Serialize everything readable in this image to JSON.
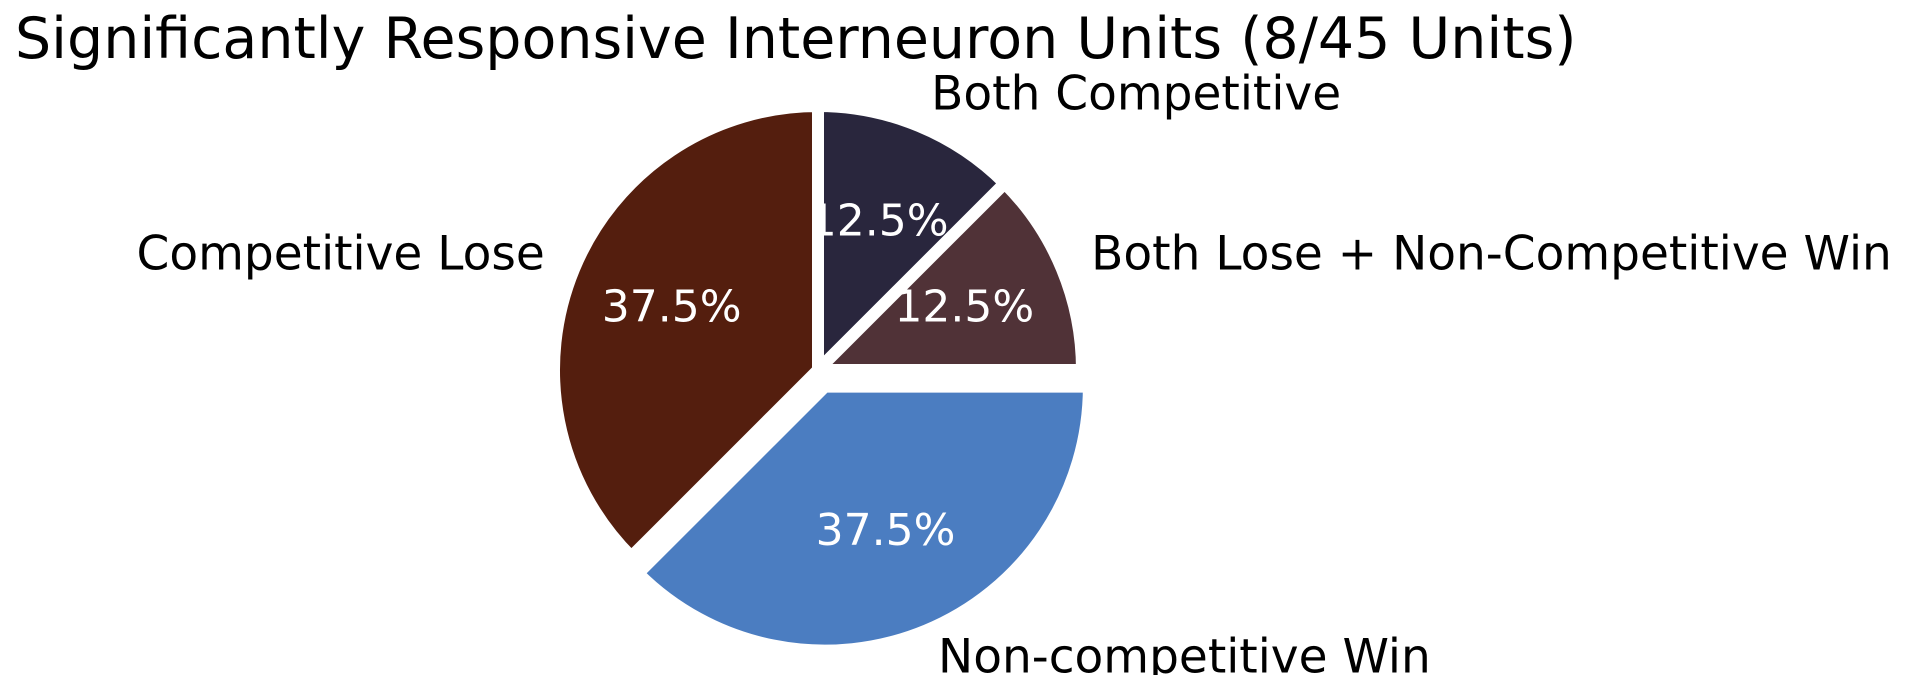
{
  "chart_data": {
    "type": "pie",
    "title": "Significantly Responsive Interneuron Units (8/45 Units)",
    "slices": [
      {
        "label": "Both Competitive",
        "value": 12.5,
        "display": "12.5%",
        "color": "#29263D",
        "exploded": false
      },
      {
        "label": "Both Lose + Non-Competitive Win",
        "value": 12.5,
        "display": "12.5%",
        "color": "#503237",
        "exploded": false
      },
      {
        "label": "Non-competitive Win",
        "value": 37.5,
        "display": "37.5%",
        "color": "#4B7DC1",
        "exploded": true
      },
      {
        "label": "Competitive Lose",
        "value": 37.5,
        "display": "37.5%",
        "color": "#541E0E",
        "exploded": false
      }
    ],
    "start_angle": "top",
    "direction": "clockwise",
    "legend": "none"
  }
}
